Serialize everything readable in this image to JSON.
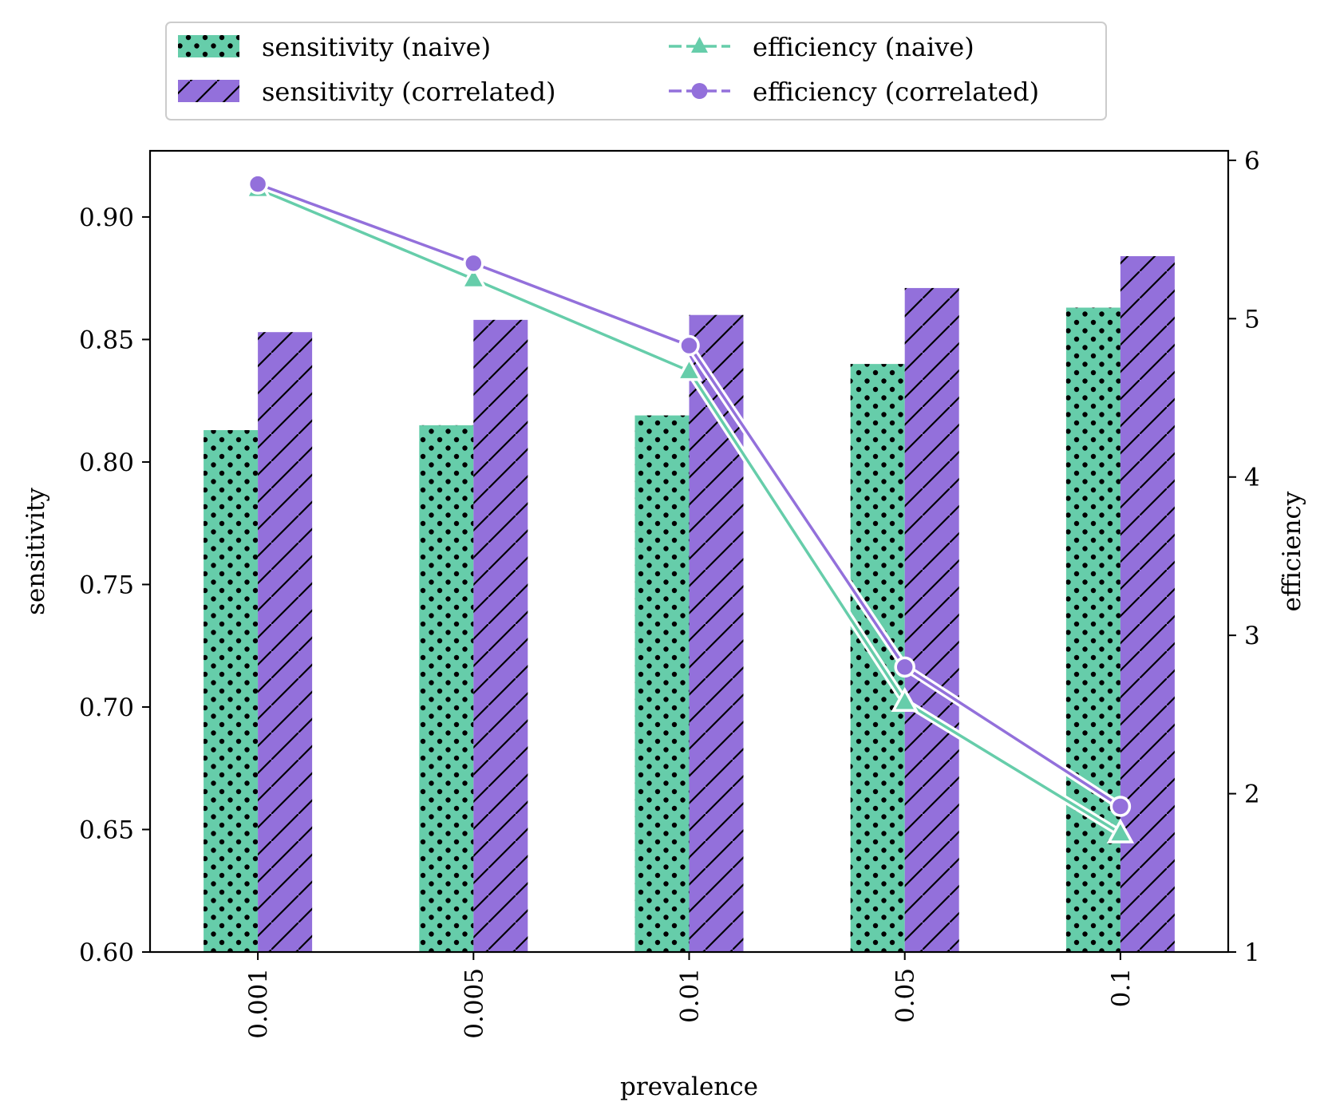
{
  "chart_data": {
    "type": "bar+line",
    "categories": [
      "0.001",
      "0.005",
      "0.01",
      "0.05",
      "0.1"
    ],
    "xlabel": "prevalence",
    "ylabel": "sensitivity",
    "y2label": "efficiency",
    "ylim": [
      0.6,
      0.927
    ],
    "y2lim": [
      1.0,
      6.06
    ],
    "yticks": [
      "0.60",
      "0.65",
      "0.70",
      "0.75",
      "0.80",
      "0.85",
      "0.90"
    ],
    "y2ticks": [
      "1",
      "2",
      "3",
      "4",
      "5",
      "6"
    ],
    "bar_series": [
      {
        "name": "sensitivity (naive)",
        "color": "#66cdaa",
        "hatch": "dots",
        "values": [
          0.813,
          0.815,
          0.819,
          0.84,
          0.863
        ]
      },
      {
        "name": "sensitivity (correlated)",
        "color": "#9370db",
        "hatch": "slash",
        "values": [
          0.853,
          0.858,
          0.86,
          0.871,
          0.884
        ]
      }
    ],
    "line_series": [
      {
        "name": "efficiency (naive)",
        "color": "#66cdaa",
        "marker": "triangle",
        "values": [
          5.82,
          5.25,
          4.67,
          2.58,
          1.75
        ]
      },
      {
        "name": "efficiency (correlated)",
        "color": "#9370db",
        "marker": "circle",
        "values": [
          5.85,
          5.35,
          4.83,
          2.8,
          1.92
        ]
      }
    ],
    "legend": {
      "position": "top-center",
      "entries": [
        "sensitivity (naive)",
        "sensitivity (correlated)",
        "efficiency (naive)",
        "efficiency (correlated)"
      ]
    }
  }
}
